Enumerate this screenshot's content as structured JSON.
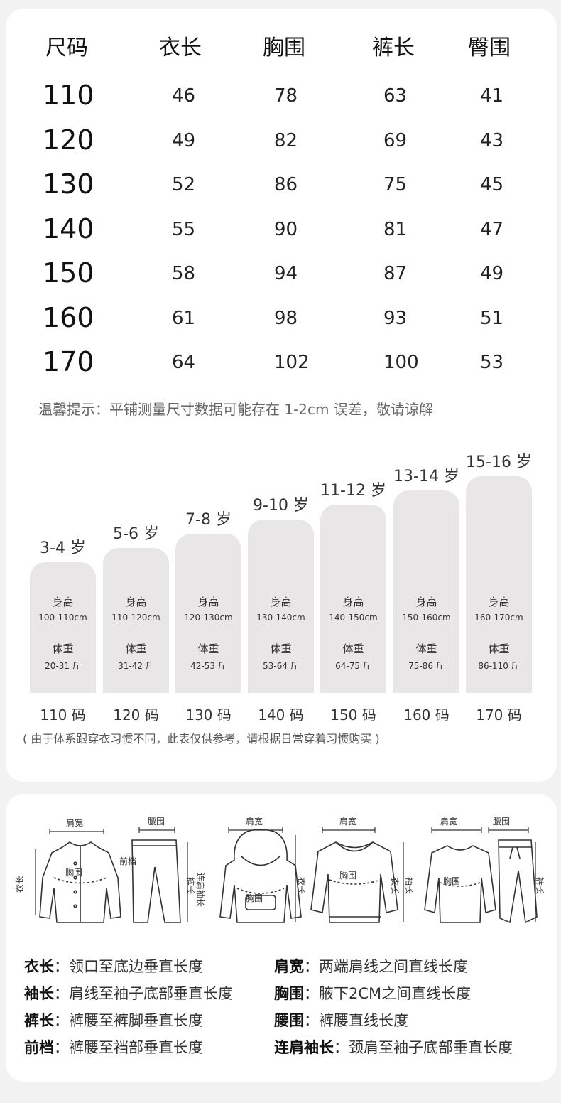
{
  "size_table": {
    "headers": [
      "尺码",
      "衣长",
      "胸围",
      "裤长",
      "臀围"
    ],
    "rows": [
      [
        "110",
        "46",
        "78",
        "63",
        "41"
      ],
      [
        "120",
        "49",
        "82",
        "69",
        "43"
      ],
      [
        "130",
        "52",
        "86",
        "75",
        "45"
      ],
      [
        "140",
        "55",
        "90",
        "81",
        "47"
      ],
      [
        "150",
        "58",
        "94",
        "87",
        "49"
      ],
      [
        "160",
        "61",
        "98",
        "93",
        "51"
      ],
      [
        "170",
        "64",
        "102",
        "100",
        "53"
      ]
    ],
    "tip": "温馨提示：平铺测量尺寸数据可能存在 1-2cm 误差，敬请谅解"
  },
  "age_chart": {
    "height_label": "身高",
    "weight_label": "体重",
    "items": [
      {
        "age": "3-4 岁",
        "height": "100-110cm",
        "weight": "20-31 斤",
        "code": "110 码"
      },
      {
        "age": "5-6 岁",
        "height": "110-120cm",
        "weight": "31-42 斤",
        "code": "120 码"
      },
      {
        "age": "7-8 岁",
        "height": "120-130cm",
        "weight": "42-53 斤",
        "code": "130 码"
      },
      {
        "age": "9-10 岁",
        "height": "130-140cm",
        "weight": "53-64 斤",
        "code": "140 码"
      },
      {
        "age": "11-12 岁",
        "height": "140-150cm",
        "weight": "64-75 斤",
        "code": "150 码"
      },
      {
        "age": "13-14 岁",
        "height": "150-160cm",
        "weight": "75-86 斤",
        "code": "160 码"
      },
      {
        "age": "15-16 岁",
        "height": "160-170cm",
        "weight": "86-110 斤",
        "code": "170 码"
      }
    ],
    "note": "( 由于体系跟穿衣习惯不同，此表仅供参考，请根据日常穿着习惯购买 )"
  },
  "diagram_labels": {
    "shoulder": "肩宽",
    "waist": "腰围",
    "chest": "胸围",
    "length": "衣长",
    "sleeve": "袖长",
    "front_rise": "前档",
    "pants_length": "裤长",
    "raglan_sleeve": "连肩袖长"
  },
  "definitions": [
    {
      "term": "衣长",
      "desc": "领口至底边垂直长度"
    },
    {
      "term": "肩宽",
      "desc": "两端肩线之间直线长度"
    },
    {
      "term": "袖长",
      "desc": "肩线至袖子底部垂直长度"
    },
    {
      "term": "胸围",
      "desc": "腋下2CM之间直线长度"
    },
    {
      "term": "裤长",
      "desc": "裤腰至裤脚垂直长度"
    },
    {
      "term": "腰围",
      "desc": "裤腰直线长度"
    },
    {
      "term": "前档",
      "desc": "裤腰至裆部垂直长度"
    },
    {
      "term": "连肩袖长",
      "desc": "颈肩至袖子底部垂直长度"
    }
  ],
  "colors": {
    "bar": "#e8e6e6",
    "background": "#f2f2f2",
    "card": "#ffffff"
  }
}
